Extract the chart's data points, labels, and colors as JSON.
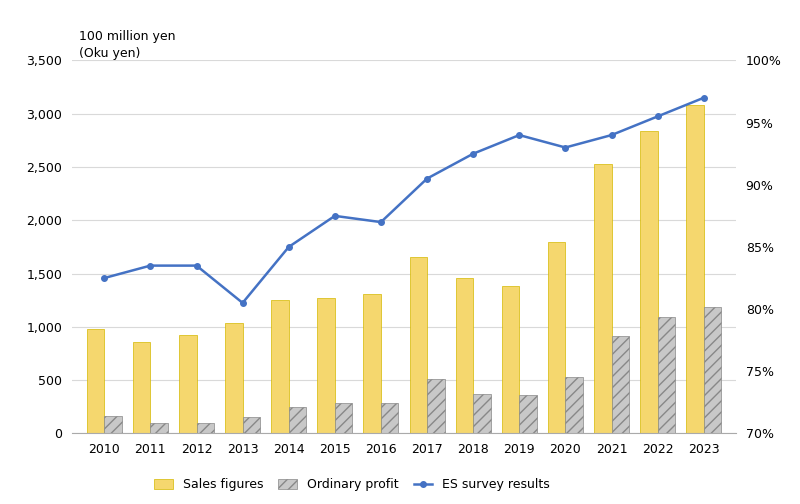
{
  "years": [
    2010,
    2011,
    2012,
    2013,
    2014,
    2015,
    2016,
    2017,
    2018,
    2019,
    2020,
    2021,
    2022,
    2023
  ],
  "sales": [
    980,
    860,
    920,
    1040,
    1250,
    1270,
    1310,
    1660,
    1460,
    1380,
    1800,
    2530,
    2840,
    3080
  ],
  "profit": [
    160,
    100,
    100,
    150,
    250,
    290,
    290,
    510,
    370,
    360,
    530,
    910,
    1090,
    1190
  ],
  "es_survey": [
    82.5,
    83.5,
    83.5,
    80.5,
    85.0,
    87.5,
    87.0,
    90.5,
    92.5,
    94.0,
    93.0,
    94.0,
    95.5,
    97.0
  ],
  "bar_color_sales": "#F5D76E",
  "bar_color_profit": "#C8C8C8",
  "line_color_es": "#4472C4",
  "left_label_line1": "100 million yen",
  "left_label_line2": "(Oku yen)",
  "ylim_left": [
    0,
    3500
  ],
  "ylim_right": [
    70,
    100
  ],
  "yticks_left": [
    0,
    500,
    1000,
    1500,
    2000,
    2500,
    3000,
    3500
  ],
  "yticks_right": [
    70,
    75,
    80,
    85,
    90,
    95,
    100
  ],
  "legend_labels": [
    "Sales figures",
    "Ordinary profit",
    "ES survey results"
  ],
  "bar_width": 0.38,
  "figure_bg": "#ffffff",
  "axes_bg": "#ffffff",
  "grid_color": "#d9d9d9",
  "label_fontsize": 9,
  "tick_fontsize": 9,
  "legend_fontsize": 9
}
